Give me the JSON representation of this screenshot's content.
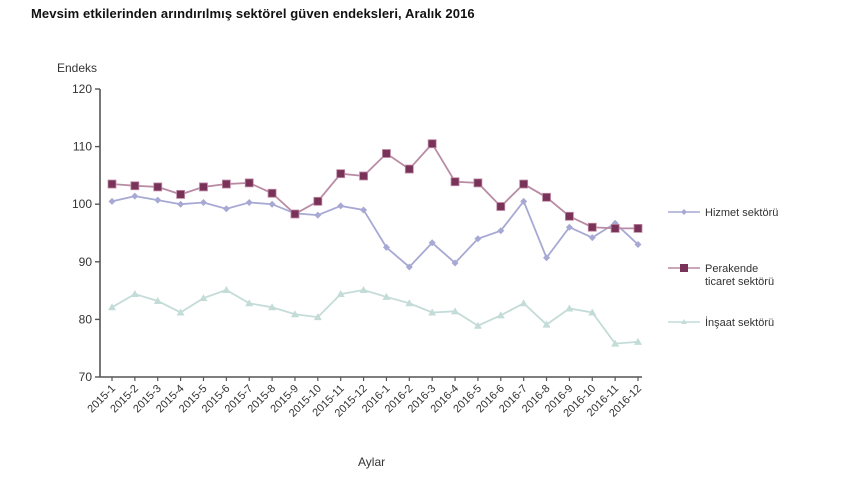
{
  "title": "Mevsim etkilerinden arındırılmış sektörel güven endeksleri, Aralık 2016",
  "colors": {
    "hizmet": "#a7a9d4",
    "perakende": "#7a3358",
    "perakende_line": "#b98ba4",
    "insaat": "#c4dcd8"
  },
  "chart_data": {
    "type": "line",
    "title": "Mevsim etkilerinden arındırılmış sektörel güven endeksleri, Aralık 2016",
    "xlabel": "Aylar",
    "ylabel": "Endeks",
    "ylim": [
      70,
      120
    ],
    "yticks": [
      70,
      80,
      90,
      100,
      110,
      120
    ],
    "grid": false,
    "legend_position": "right",
    "categories": [
      "2015-1",
      "2015-2",
      "2015-3",
      "2015-4",
      "2015-5",
      "2015-6",
      "2015-7",
      "2015-8",
      "2015-9",
      "2015-10",
      "2015-11",
      "2015-12",
      "2016-1",
      "2016-2",
      "2016-3",
      "2016-4",
      "2016-5",
      "2016-6",
      "2016-7",
      "2016-8",
      "2016-9",
      "2016-10",
      "2016-11",
      "2016-12"
    ],
    "series": [
      {
        "name": "Hizmet sektörü",
        "marker": "diamond",
        "values": [
          100.5,
          101.4,
          100.7,
          100.0,
          100.3,
          99.2,
          100.3,
          100.0,
          98.4,
          98.1,
          99.7,
          99.0,
          92.5,
          89.1,
          93.3,
          89.8,
          94.0,
          95.4,
          100.5,
          90.7,
          96.0,
          94.2,
          96.7,
          93.0
        ]
      },
      {
        "name": "Perakende ticaret sektörü",
        "marker": "square",
        "values": [
          103.5,
          103.2,
          103.0,
          101.7,
          103.0,
          103.5,
          103.7,
          101.9,
          98.3,
          100.5,
          105.3,
          104.9,
          108.8,
          106.1,
          110.5,
          103.9,
          103.7,
          99.6,
          103.5,
          101.2,
          97.9,
          96.0,
          95.8,
          95.8
        ]
      },
      {
        "name": "İnşaat sektörü",
        "marker": "triangle",
        "values": [
          82.1,
          84.4,
          83.2,
          81.2,
          83.7,
          85.1,
          82.8,
          82.1,
          80.9,
          80.4,
          84.4,
          85.1,
          83.9,
          82.8,
          81.2,
          81.4,
          78.9,
          80.7,
          82.8,
          79.1,
          81.9,
          81.2,
          75.8,
          76.1
        ]
      }
    ]
  },
  "legend": {
    "items": [
      {
        "lines": [
          "Hizmet sektörü"
        ]
      },
      {
        "lines": [
          "Perakende",
          "ticaret sektörü"
        ]
      },
      {
        "lines": [
          "İnşaat sektörü"
        ]
      }
    ]
  }
}
